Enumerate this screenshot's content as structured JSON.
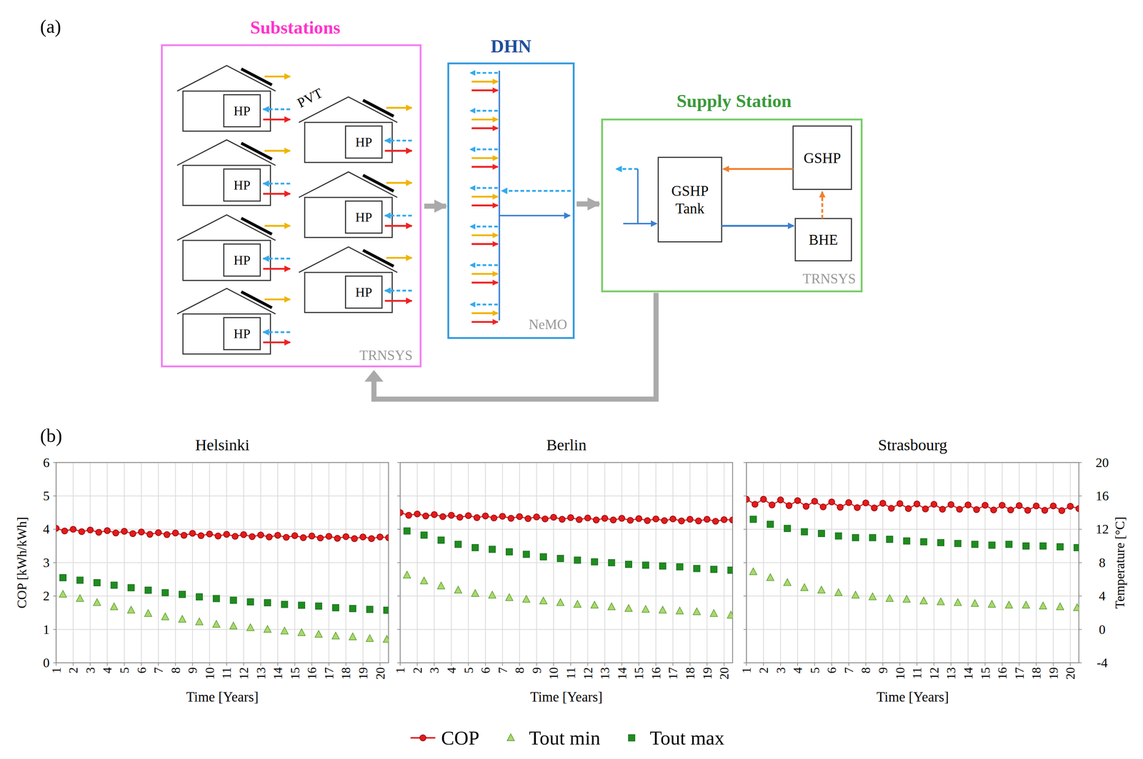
{
  "figure": {
    "label_a": "(a)",
    "label_b": "(b)"
  },
  "diagram": {
    "substations": {
      "title": "Substations",
      "tool": "TRNSYS",
      "house_label": "HP",
      "pvt_label": "PVT"
    },
    "dhn": {
      "title": "DHN",
      "tool": "NeMO"
    },
    "supply_station": {
      "title": "Supply Station",
      "tool": "TRNSYS",
      "nodes": [
        "GSHP Tank",
        "GSHP",
        "BHE"
      ]
    }
  },
  "chart_data": [
    {
      "type": "line",
      "title": "Helsinki",
      "x_label": "Time [Years]",
      "y_label": "COP [kWh/kWh]",
      "xlim": [
        1,
        20.5
      ],
      "xticks": [
        1,
        2,
        3,
        4,
        5,
        6,
        7,
        8,
        9,
        10,
        11,
        12,
        13,
        14,
        15,
        16,
        17,
        18,
        19,
        20
      ],
      "ylim": [
        0,
        6
      ],
      "yticks": [
        0,
        1,
        2,
        3,
        4,
        5,
        6
      ],
      "y2lim": [
        -4,
        20
      ],
      "grid": true,
      "legend": "bottom",
      "series": [
        {
          "name": "COP",
          "type": "line",
          "color": "#e41a1c",
          "marker": "circle",
          "x": [
            1,
            1.5,
            2,
            2.5,
            3,
            3.5,
            4,
            4.5,
            5,
            5.5,
            6,
            6.5,
            7,
            7.5,
            8,
            8.5,
            9,
            9.5,
            10,
            10.5,
            11,
            11.5,
            12,
            12.5,
            13,
            13.5,
            14,
            14.5,
            15,
            15.5,
            16,
            16.5,
            17,
            17.5,
            18,
            18.5,
            19,
            19.5,
            20,
            20.5
          ],
          "values": [
            4.03,
            3.95,
            4.0,
            3.93,
            3.98,
            3.91,
            3.96,
            3.89,
            3.94,
            3.87,
            3.92,
            3.85,
            3.9,
            3.84,
            3.89,
            3.82,
            3.88,
            3.81,
            3.86,
            3.8,
            3.85,
            3.79,
            3.84,
            3.78,
            3.83,
            3.77,
            3.82,
            3.76,
            3.81,
            3.75,
            3.8,
            3.74,
            3.79,
            3.73,
            3.78,
            3.72,
            3.77,
            3.72,
            3.77,
            3.75
          ]
        },
        {
          "name": "Tout min",
          "type": "scatter",
          "color": "#a9d86e",
          "marker": "triangle",
          "axis": "y2",
          "x": [
            1.4,
            2.4,
            3.4,
            4.4,
            5.4,
            6.4,
            7.4,
            8.4,
            9.4,
            10.4,
            11.4,
            12.4,
            13.4,
            14.4,
            15.4,
            16.4,
            17.4,
            18.4,
            19.4,
            20.4
          ],
          "values": [
            4.2,
            3.7,
            3.2,
            2.7,
            2.3,
            1.9,
            1.5,
            1.2,
            0.9,
            0.6,
            0.4,
            0.2,
            0,
            -0.2,
            -0.4,
            -0.6,
            -0.8,
            -0.9,
            -1.1,
            -1.2
          ]
        },
        {
          "name": "Tout max",
          "type": "scatter",
          "color": "#1e8c1e",
          "marker": "square",
          "axis": "y2",
          "x": [
            1.4,
            2.4,
            3.4,
            4.4,
            5.4,
            6.4,
            7.4,
            8.4,
            9.4,
            10.4,
            11.4,
            12.4,
            13.4,
            14.4,
            15.4,
            16.4,
            17.4,
            18.4,
            19.4,
            20.4
          ],
          "values": [
            6.2,
            5.9,
            5.6,
            5.3,
            5.0,
            4.7,
            4.4,
            4.2,
            3.9,
            3.7,
            3.5,
            3.3,
            3.2,
            3.0,
            2.9,
            2.8,
            2.6,
            2.5,
            2.4,
            2.3
          ]
        }
      ]
    },
    {
      "type": "line",
      "title": "Berlin",
      "x_label": "Time [Years]",
      "tick_labels": "x",
      "xlim": [
        1,
        20.5
      ],
      "xticks": [
        1,
        2,
        3,
        4,
        5,
        6,
        7,
        8,
        9,
        10,
        11,
        12,
        13,
        14,
        15,
        16,
        17,
        18,
        19,
        20
      ],
      "ylim": [
        0,
        6
      ],
      "yticks": [
        0,
        1,
        2,
        3,
        4,
        5,
        6
      ],
      "y2lim": [
        -4,
        20
      ],
      "grid": true,
      "series": [
        {
          "name": "COP",
          "type": "line",
          "color": "#e41a1c",
          "marker": "circle",
          "x": [
            1,
            1.5,
            2,
            2.5,
            3,
            3.5,
            4,
            4.5,
            5,
            5.5,
            6,
            6.5,
            7,
            7.5,
            8,
            8.5,
            9,
            9.5,
            10,
            10.5,
            11,
            11.5,
            12,
            12.5,
            13,
            13.5,
            14,
            14.5,
            15,
            15.5,
            16,
            16.5,
            17,
            17.5,
            18,
            18.5,
            19,
            19.5,
            20,
            20.5
          ],
          "values": [
            4.5,
            4.42,
            4.46,
            4.4,
            4.44,
            4.38,
            4.42,
            4.36,
            4.41,
            4.35,
            4.4,
            4.34,
            4.39,
            4.33,
            4.38,
            4.32,
            4.37,
            4.31,
            4.36,
            4.3,
            4.35,
            4.29,
            4.34,
            4.28,
            4.33,
            4.28,
            4.33,
            4.27,
            4.32,
            4.26,
            4.31,
            4.26,
            4.31,
            4.25,
            4.3,
            4.25,
            4.3,
            4.24,
            4.29,
            4.28
          ]
        },
        {
          "name": "Tout min",
          "type": "scatter",
          "color": "#a9d86e",
          "marker": "triangle",
          "axis": "y2",
          "x": [
            1.4,
            2.4,
            3.4,
            4.4,
            5.4,
            6.4,
            7.4,
            8.4,
            9.4,
            10.4,
            11.4,
            12.4,
            13.4,
            14.4,
            15.4,
            16.4,
            17.4,
            18.4,
            19.4,
            20.4
          ],
          "values": [
            6.5,
            5.8,
            5.2,
            4.7,
            4.3,
            4.1,
            3.8,
            3.6,
            3.4,
            3.2,
            3.0,
            2.9,
            2.7,
            2.5,
            2.4,
            2.3,
            2.2,
            2.1,
            1.9,
            1.7
          ]
        },
        {
          "name": "Tout max",
          "type": "scatter",
          "color": "#1e8c1e",
          "marker": "square",
          "axis": "y2",
          "x": [
            1.4,
            2.4,
            3.4,
            4.4,
            5.4,
            6.4,
            7.4,
            8.4,
            9.4,
            10.4,
            11.4,
            12.4,
            13.4,
            14.4,
            15.4,
            16.4,
            17.4,
            18.4,
            19.4,
            20.4
          ],
          "values": [
            11.8,
            11.3,
            10.7,
            10.2,
            9.8,
            9.6,
            9.3,
            9.0,
            8.7,
            8.5,
            8.3,
            8.1,
            8.0,
            7.8,
            7.7,
            7.6,
            7.5,
            7.3,
            7.2,
            7.1
          ]
        }
      ]
    },
    {
      "type": "line",
      "title": "Strasbourg",
      "x_label": "Time [Years]",
      "y2_label": "Temperature [°C]",
      "tick_labels": "x",
      "xlim": [
        1,
        20.5
      ],
      "xticks": [
        1,
        2,
        3,
        4,
        5,
        6,
        7,
        8,
        9,
        10,
        11,
        12,
        13,
        14,
        15,
        16,
        17,
        18,
        19,
        20
      ],
      "ylim": [
        0,
        6
      ],
      "yticks": [
        0,
        1,
        2,
        3,
        4,
        5,
        6
      ],
      "y2lim": [
        -4,
        20
      ],
      "y2ticks": [
        -4,
        0,
        4,
        8,
        12,
        16,
        20
      ],
      "grid": true,
      "series": [
        {
          "name": "COP",
          "type": "line",
          "color": "#e41a1c",
          "marker": "circle",
          "x": [
            1,
            1.5,
            2,
            2.5,
            3,
            3.5,
            4,
            4.5,
            5,
            5.5,
            6,
            6.5,
            7,
            7.5,
            8,
            8.5,
            9,
            9.5,
            10,
            10.5,
            11,
            11.5,
            12,
            12.5,
            13,
            13.5,
            14,
            14.5,
            15,
            15.5,
            16,
            16.5,
            17,
            17.5,
            18,
            18.5,
            19,
            19.5,
            20,
            20.5
          ],
          "values": [
            4.9,
            4.75,
            4.9,
            4.73,
            4.88,
            4.71,
            4.86,
            4.69,
            4.84,
            4.67,
            4.82,
            4.66,
            4.8,
            4.65,
            4.79,
            4.64,
            4.78,
            4.63,
            4.77,
            4.62,
            4.76,
            4.61,
            4.75,
            4.6,
            4.74,
            4.6,
            4.73,
            4.59,
            4.72,
            4.58,
            4.72,
            4.58,
            4.71,
            4.57,
            4.7,
            4.57,
            4.7,
            4.56,
            4.69,
            4.62
          ]
        },
        {
          "name": "Tout min",
          "type": "scatter",
          "color": "#a9d86e",
          "marker": "triangle",
          "axis": "y2",
          "x": [
            1.4,
            2.4,
            3.4,
            4.4,
            5.4,
            6.4,
            7.4,
            8.4,
            9.4,
            10.4,
            11.4,
            12.4,
            13.4,
            14.4,
            15.4,
            16.4,
            17.4,
            18.4,
            19.4,
            20.4
          ],
          "values": [
            6.9,
            6.2,
            5.6,
            5.0,
            4.7,
            4.4,
            4.1,
            3.9,
            3.7,
            3.6,
            3.4,
            3.3,
            3.2,
            3.1,
            3.0,
            2.9,
            2.9,
            2.8,
            2.7,
            2.6
          ]
        },
        {
          "name": "Tout max",
          "type": "scatter",
          "color": "#1e8c1e",
          "marker": "square",
          "axis": "y2",
          "x": [
            1.4,
            2.4,
            3.4,
            4.4,
            5.4,
            6.4,
            7.4,
            8.4,
            9.4,
            10.4,
            11.4,
            12.4,
            13.4,
            14.4,
            15.4,
            16.4,
            17.4,
            18.4,
            19.4,
            20.4
          ],
          "values": [
            13.2,
            12.6,
            12.1,
            11.7,
            11.5,
            11.2,
            11.0,
            11.0,
            10.8,
            10.6,
            10.5,
            10.4,
            10.3,
            10.2,
            10.1,
            10.2,
            10.0,
            10.0,
            9.9,
            9.8
          ]
        }
      ]
    }
  ]
}
